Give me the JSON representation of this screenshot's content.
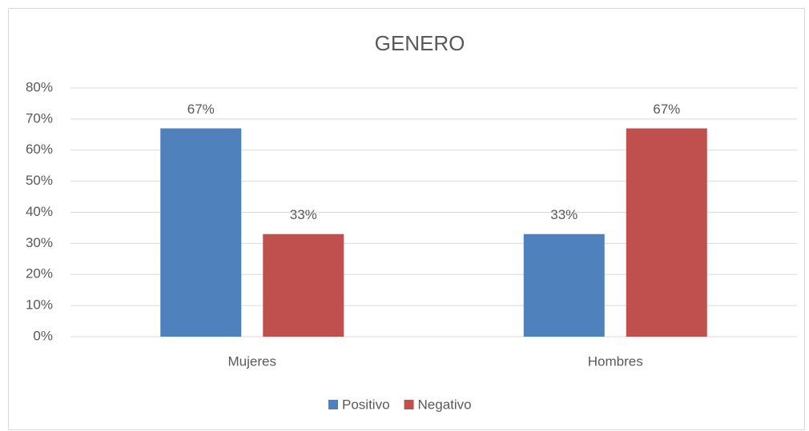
{
  "chart_data": {
    "type": "bar",
    "title": "GENERO",
    "categories": [
      "Mujeres",
      "Hombres"
    ],
    "series": [
      {
        "name": "Positivo",
        "color": "#4f81bd",
        "values": [
          67,
          33
        ],
        "value_labels": [
          "67%",
          "33%"
        ]
      },
      {
        "name": "Negativo",
        "color": "#c0504d",
        "values": [
          33,
          67
        ],
        "value_labels": [
          "33%",
          "67%"
        ]
      }
    ],
    "ylim": [
      0,
      80
    ],
    "yticks": [
      {
        "value": 0,
        "label": "0%"
      },
      {
        "value": 10,
        "label": "10%"
      },
      {
        "value": 20,
        "label": "20%"
      },
      {
        "value": 30,
        "label": "30%"
      },
      {
        "value": 40,
        "label": "40%"
      },
      {
        "value": 50,
        "label": "50%"
      },
      {
        "value": 60,
        "label": "60%"
      },
      {
        "value": 70,
        "label": "70%"
      },
      {
        "value": 80,
        "label": "80%"
      }
    ],
    "grid": true,
    "legend": "bottom"
  }
}
